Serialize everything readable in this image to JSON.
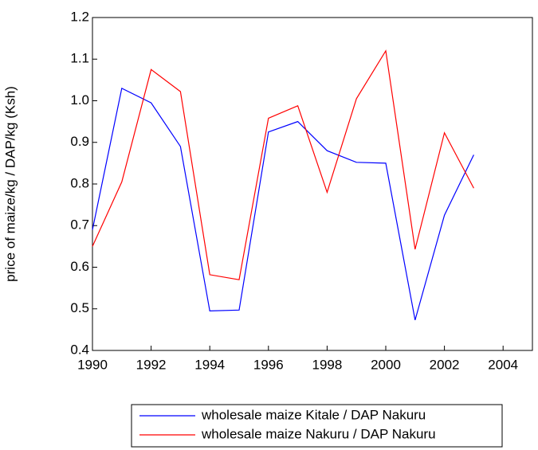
{
  "chart_data": {
    "type": "line",
    "y_label": "price of maize/kg / DAP/kg (Ksh)",
    "x": [
      1990,
      1991,
      1992,
      1993,
      1994,
      1995,
      1996,
      1997,
      1998,
      1999,
      2000,
      2001,
      2002,
      2003
    ],
    "series": [
      {
        "name": "wholesale maize Kitale / DAP Nakuru",
        "color": "#0000ff",
        "values": [
          0.69,
          1.03,
          0.995,
          0.89,
          0.495,
          0.497,
          0.925,
          0.95,
          0.88,
          0.852,
          0.85,
          0.473,
          0.725,
          0.87
        ]
      },
      {
        "name": "wholesale maize Nakuru / DAP Nakuru",
        "color": "#ff0000",
        "values": [
          0.65,
          0.805,
          1.075,
          1.022,
          0.582,
          0.57,
          0.958,
          0.988,
          0.78,
          1.005,
          1.12,
          0.643,
          0.923,
          0.79
        ]
      }
    ],
    "xlim": [
      1990,
      2005
    ],
    "xticks": [
      1990,
      1992,
      1994,
      1996,
      1998,
      2000,
      2002,
      2004
    ],
    "ylim": [
      0.4,
      1.2
    ],
    "yticks": [
      0.4,
      0.5,
      0.6,
      0.7,
      0.8,
      0.9,
      {
        "value": 1,
        "label": "1.0"
      },
      1.1,
      1.2
    ],
    "legend": "bottom"
  }
}
